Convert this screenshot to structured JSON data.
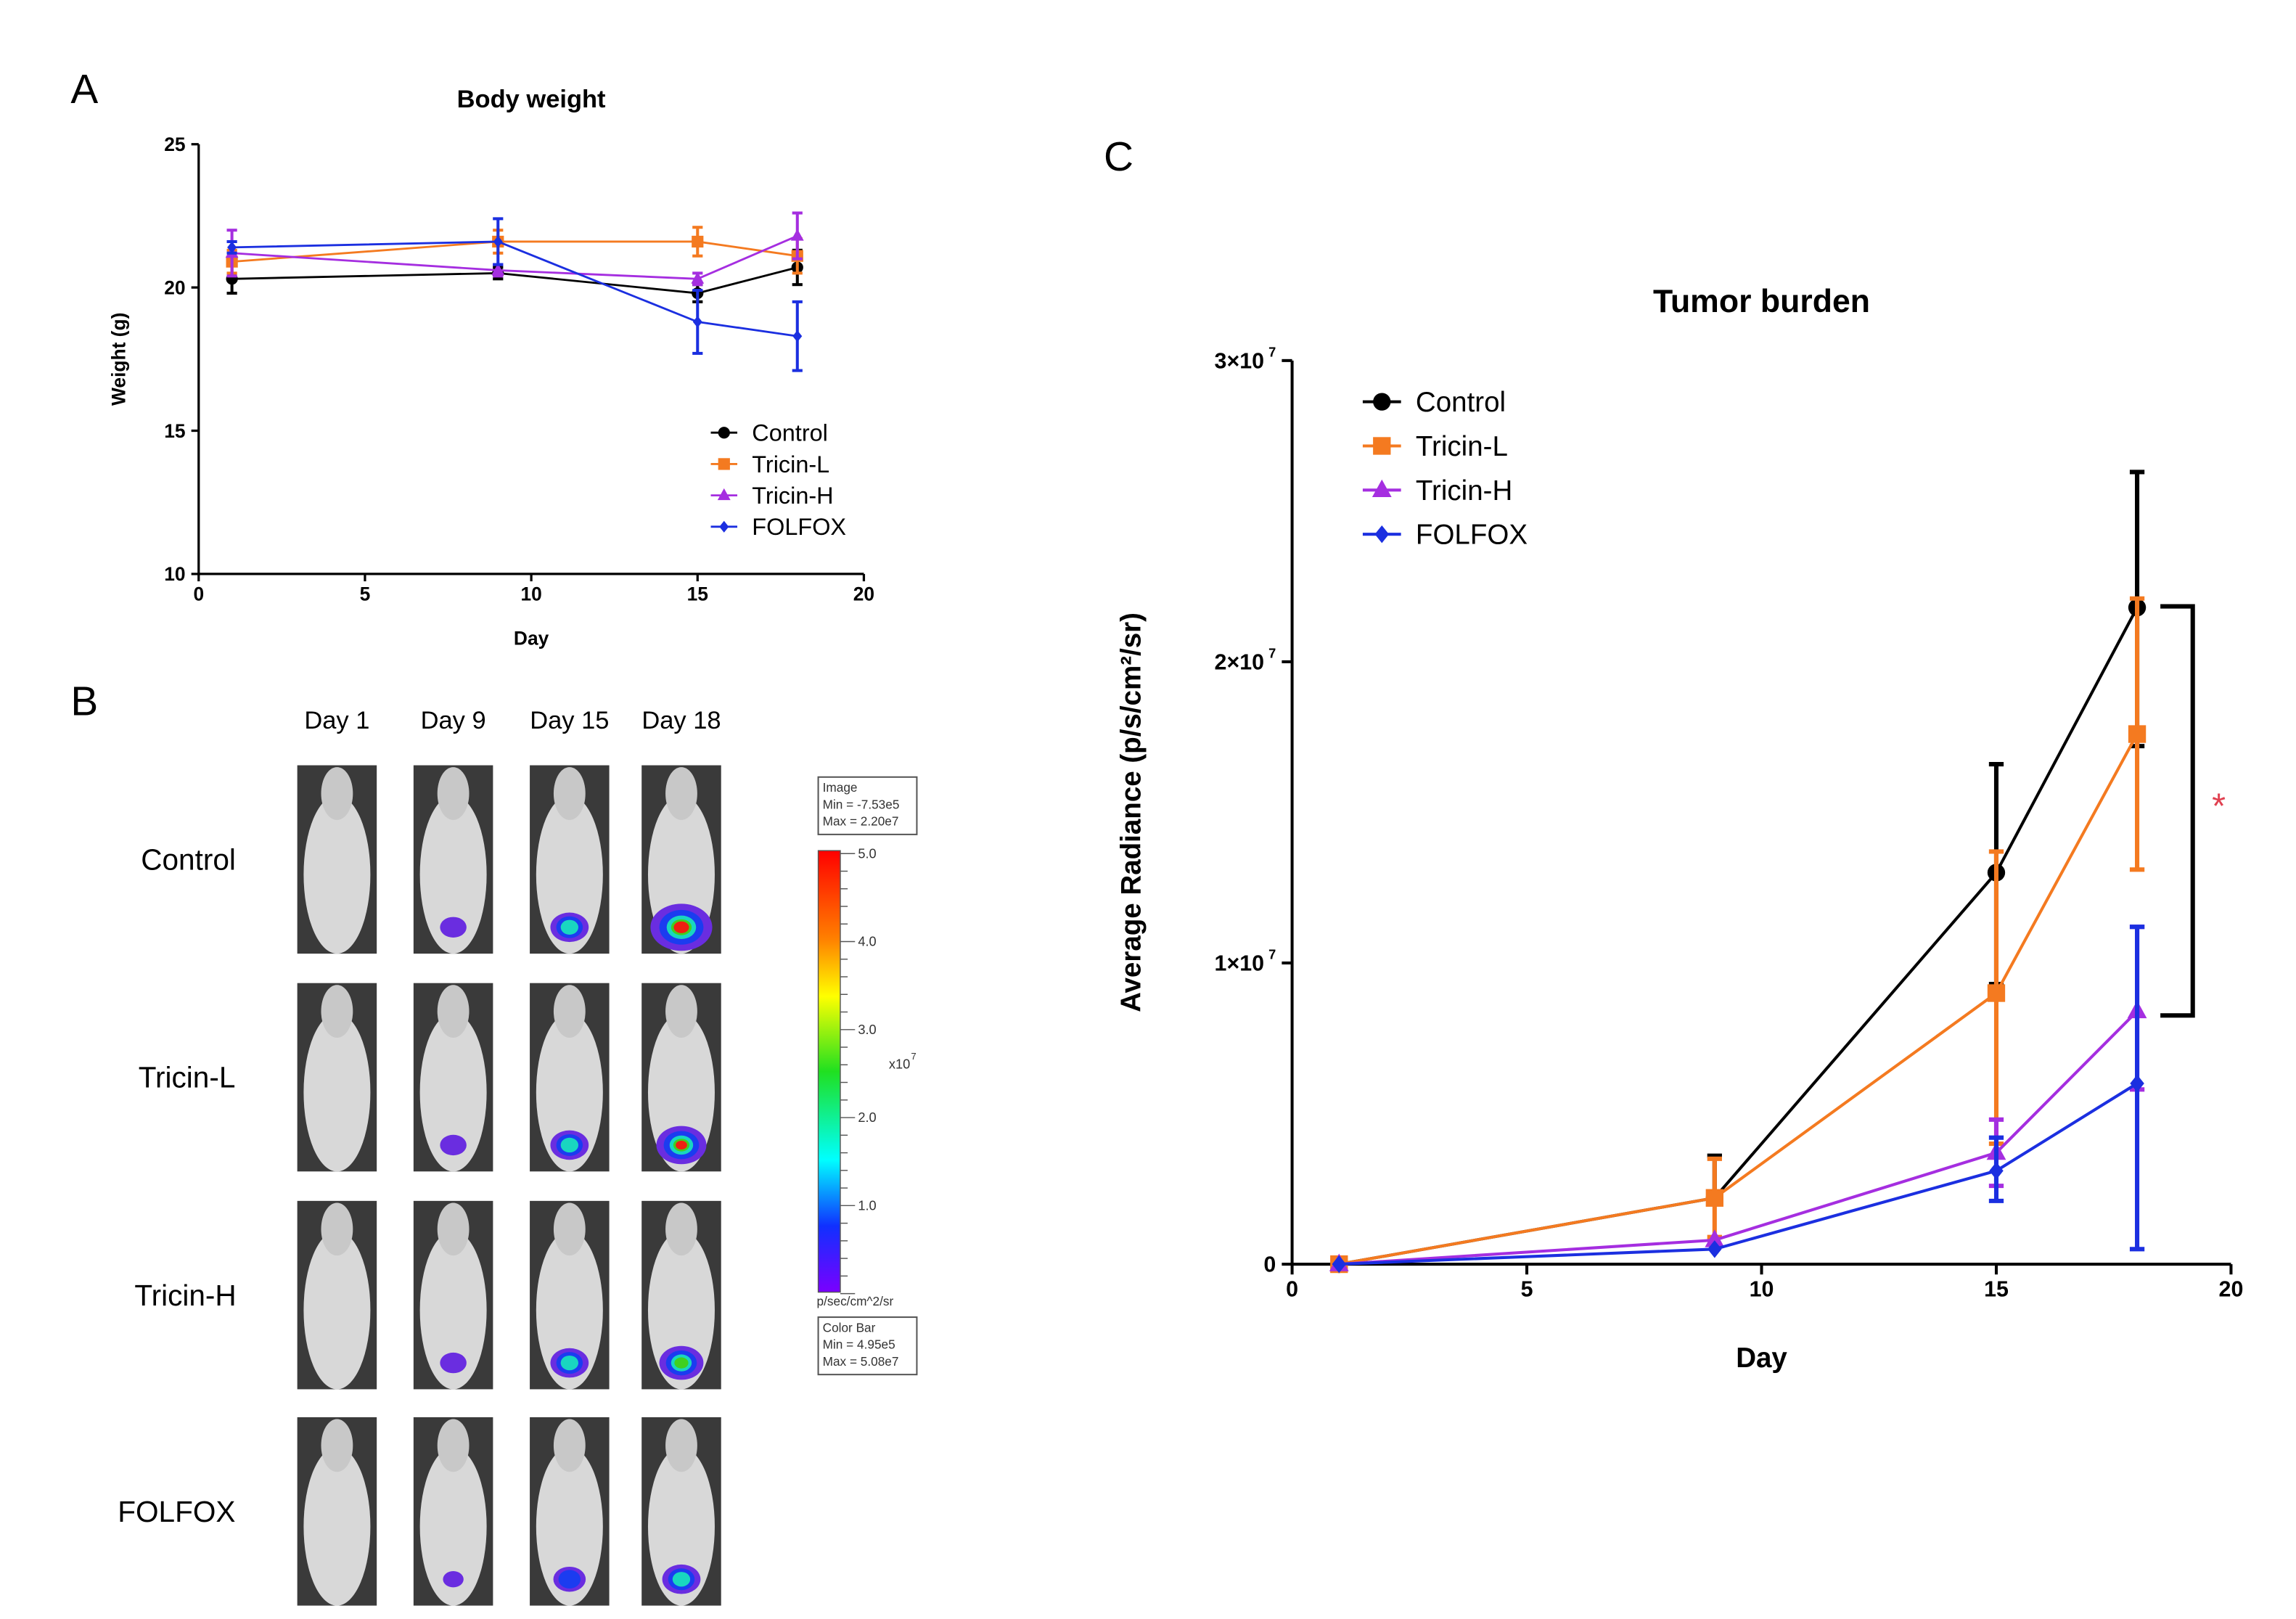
{
  "panel_labels": {
    "a": "A",
    "b": "B",
    "c": "C"
  },
  "colorbar": {
    "image_box": [
      "Image",
      "Min = -7.53e5",
      "Max = 2.20e7"
    ],
    "ticks": [
      "5.0",
      "4.0",
      "3.0",
      "2.0",
      "1.0"
    ],
    "multiplier": "x10",
    "multiplier_exp": "7",
    "units": "p/sec/cm^2/sr",
    "bar_box": [
      "Color Bar",
      "Min = 4.95e5",
      "Max = 5.08e7"
    ]
  },
  "imaging": {
    "columns": [
      "Day 1",
      "Day 9",
      "Day 15",
      "Day 18"
    ],
    "rows": [
      "Control",
      "Tricin-L",
      "Tricin-H",
      "FOLFOX"
    ],
    "signal_level": [
      [
        0,
        1,
        2,
        4
      ],
      [
        0,
        1,
        2,
        3
      ],
      [
        0,
        1,
        2,
        2.5
      ],
      [
        0,
        0.5,
        1.5,
        2
      ]
    ]
  },
  "chart_data": [
    {
      "type": "line",
      "title": "Body weight",
      "xlabel": "Day",
      "ylabel": "Weight (g)",
      "xlim": [
        0,
        20
      ],
      "ylim": [
        10,
        25
      ],
      "xticks": [
        "0",
        "5",
        "10",
        "15",
        "20"
      ],
      "yticks": [
        "10",
        "15",
        "20",
        "25"
      ],
      "legend_position": "bottom-right",
      "x": [
        1,
        9,
        15,
        18
      ],
      "series": [
        {
          "name": "Control",
          "color": "#000000",
          "marker": "circle",
          "values": [
            20.3,
            20.5,
            19.8,
            20.7
          ],
          "error": [
            0.5,
            0.2,
            0.3,
            0.6
          ]
        },
        {
          "name": "Tricin-L",
          "color": "#f47a20",
          "marker": "square",
          "values": [
            20.9,
            21.6,
            21.6,
            21.1
          ],
          "error": [
            0.4,
            0.4,
            0.5,
            0.6
          ]
        },
        {
          "name": "Tricin-H",
          "color": "#a52ee0",
          "marker": "triangle",
          "values": [
            21.2,
            20.6,
            20.3,
            21.8
          ],
          "error": [
            0.8,
            0.2,
            0.2,
            0.8
          ]
        },
        {
          "name": "FOLFOX",
          "color": "#1b2fe0",
          "marker": "diamond",
          "values": [
            21.4,
            21.6,
            18.8,
            18.3
          ],
          "error": [
            0.2,
            0.8,
            1.1,
            1.2
          ]
        }
      ]
    },
    {
      "type": "line",
      "title": "Tumor burden",
      "xlabel": "Day",
      "ylabel": "Average Radiance (p/s/cm²/sr)",
      "xlim": [
        0,
        20
      ],
      "ylim": [
        0,
        30000000
      ],
      "xticks": [
        "0",
        "5",
        "10",
        "15",
        "20"
      ],
      "yticks": [
        "0",
        "1×10",
        "2×10",
        "3×10"
      ],
      "ytick_exp": "7",
      "legend_position": "top-left",
      "x": [
        1,
        9,
        15,
        18
      ],
      "series": [
        {
          "name": "Control",
          "color": "#000000",
          "marker": "circle",
          "values": [
            0,
            2200000,
            13000000,
            21800000
          ],
          "upper": [
            0,
            3600000,
            16600000,
            26300000
          ],
          "lower": [
            0,
            2200000,
            9300000,
            17200000
          ]
        },
        {
          "name": "Tricin-L",
          "color": "#f47a20",
          "marker": "square",
          "values": [
            0,
            2200000,
            9000000,
            17600000
          ],
          "upper": [
            0,
            3500000,
            13700000,
            22100000
          ],
          "lower": [
            0,
            900000,
            4000000,
            13100000
          ]
        },
        {
          "name": "Tricin-H",
          "color": "#a52ee0",
          "marker": "triangle",
          "values": [
            0,
            800000,
            3700000,
            8400000
          ],
          "upper": [
            0,
            800000,
            4800000,
            11200000
          ],
          "lower": [
            0,
            800000,
            2600000,
            5800000
          ]
        },
        {
          "name": "FOLFOX",
          "color": "#1b2fe0",
          "marker": "diamond",
          "values": [
            0,
            500000,
            3100000,
            6000000
          ],
          "upper": [
            0,
            500000,
            4200000,
            11200000
          ],
          "lower": [
            0,
            500000,
            2100000,
            500000
          ]
        }
      ],
      "annotation": {
        "text": "*",
        "color": "#e04050",
        "between": [
          "Control",
          "FOLFOX"
        ],
        "day": 18
      }
    }
  ]
}
